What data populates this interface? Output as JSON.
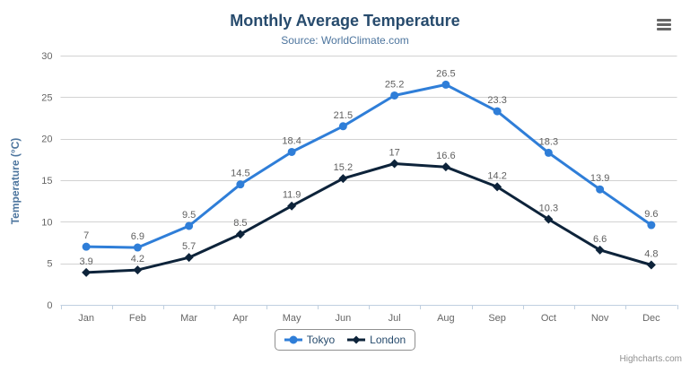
{
  "header": {
    "title": "Monthly Average Temperature",
    "subtitle": "Source: WorldClimate.com"
  },
  "credits_label": "Highcharts.com",
  "icons": {
    "menu": "hamburger-icon"
  },
  "chart_data": {
    "type": "line",
    "title": "Monthly Average Temperature",
    "subtitle": "Source: WorldClimate.com",
    "categories": [
      "Jan",
      "Feb",
      "Mar",
      "Apr",
      "May",
      "Jun",
      "Jul",
      "Aug",
      "Sep",
      "Oct",
      "Nov",
      "Dec"
    ],
    "series": [
      {
        "name": "Tokyo",
        "color": "#2f7ed8",
        "marker": "circle",
        "values": [
          7,
          6.9,
          9.5,
          14.5,
          18.4,
          21.5,
          25.2,
          26.5,
          23.3,
          18.3,
          13.9,
          9.6
        ]
      },
      {
        "name": "London",
        "color": "#0d233a",
        "marker": "diamond",
        "values": [
          3.9,
          4.2,
          5.7,
          8.5,
          11.9,
          15.2,
          17,
          16.6,
          14.2,
          10.3,
          6.6,
          4.8
        ]
      }
    ],
    "xlabel": "",
    "ylabel": "Temperature (°C)",
    "ylim": [
      0,
      30
    ],
    "yticks": [
      0,
      5,
      10,
      15,
      20,
      25,
      30
    ],
    "grid": "horizontal",
    "grid_color": "#d2d2d2",
    "axis_line_color": "#c0d0e0",
    "data_labels": true,
    "legend_position": "bottom-center"
  }
}
